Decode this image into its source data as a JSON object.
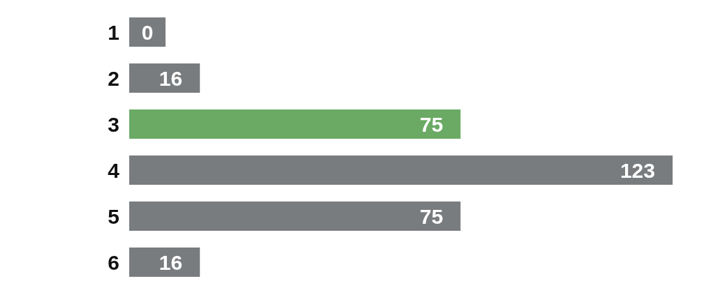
{
  "chart_data": {
    "type": "bar",
    "orientation": "horizontal",
    "categories": [
      "1",
      "2",
      "3",
      "4",
      "5",
      "6"
    ],
    "values": [
      0,
      16,
      75,
      123,
      75,
      16
    ],
    "colors": [
      "#797c7f",
      "#797c7f",
      "#6aaa64",
      "#797c7f",
      "#797c7f",
      "#797c7f"
    ],
    "data_labels": true,
    "grid": false,
    "legend": false
  }
}
